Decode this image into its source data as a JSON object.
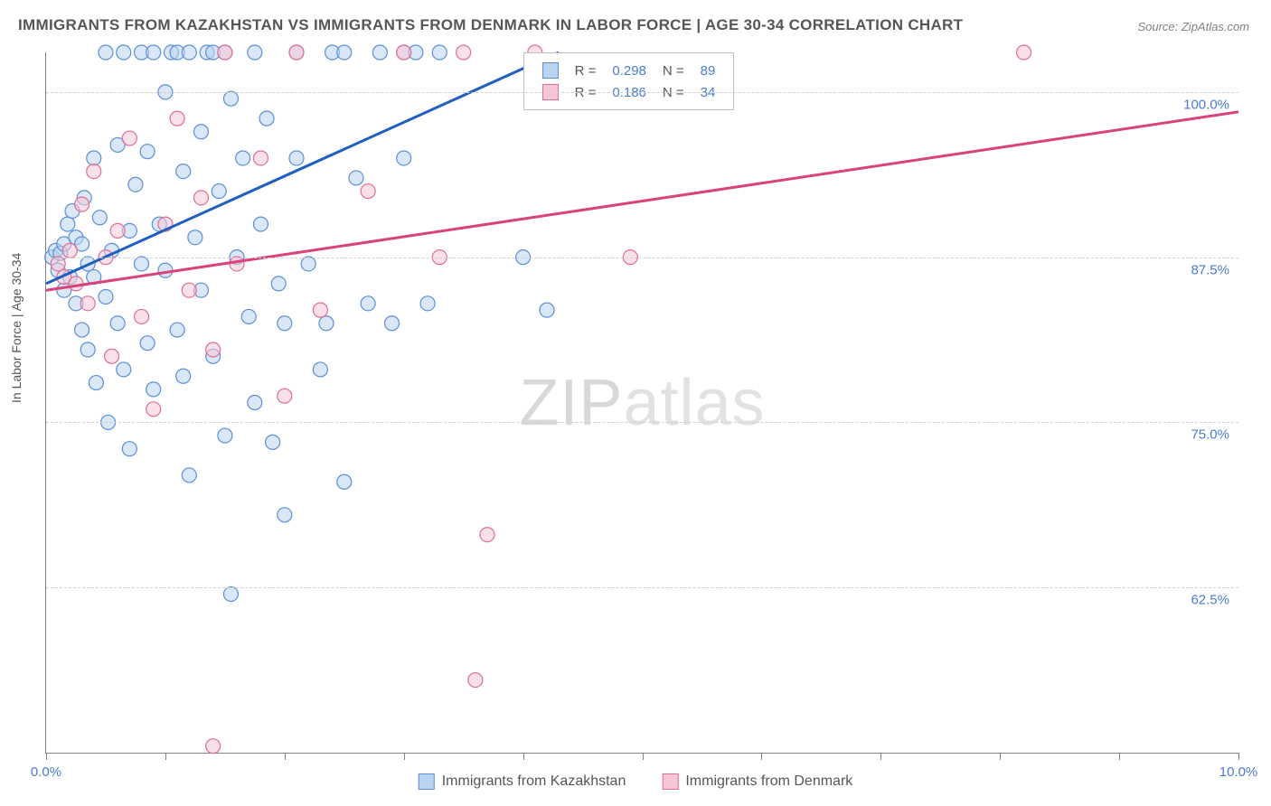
{
  "title": "IMMIGRANTS FROM KAZAKHSTAN VS IMMIGRANTS FROM DENMARK IN LABOR FORCE | AGE 30-34 CORRELATION CHART",
  "source": "Source: ZipAtlas.com",
  "y_axis_label": "In Labor Force | Age 30-34",
  "watermark_bold": "ZIP",
  "watermark_thin": "atlas",
  "chart": {
    "type": "scatter",
    "x_domain": [
      0,
      10
    ],
    "y_domain": [
      50,
      103
    ],
    "x_ticks": [
      0,
      1,
      2,
      3,
      4,
      5,
      6,
      7,
      8,
      9,
      10
    ],
    "x_tick_labels": {
      "0": "0.0%",
      "10": "10.0%"
    },
    "y_gridlines": [
      62.5,
      75.0,
      87.5,
      100.0
    ],
    "y_tick_labels": [
      "62.5%",
      "75.0%",
      "87.5%",
      "100.0%"
    ],
    "background_color": "#ffffff",
    "grid_color": "#d0d0d0",
    "axis_color": "#808080",
    "tick_label_color": "#4a7bd0",
    "marker_radius": 8,
    "marker_stroke_width": 1.2,
    "series": [
      {
        "name": "Immigrants from Kazakhstan",
        "fill": "#b9d3f0",
        "stroke": "#5b8fd6",
        "fill_opacity": 0.55,
        "regression": {
          "x1": 0,
          "y1": 85.5,
          "x2": 4.3,
          "y2": 103,
          "color": "#1f5fbf",
          "width": 3
        },
        "r": "0.298",
        "n": "89",
        "points": [
          [
            0.05,
            87.5
          ],
          [
            0.08,
            88.0
          ],
          [
            0.1,
            86.5
          ],
          [
            0.12,
            87.8
          ],
          [
            0.15,
            88.5
          ],
          [
            0.15,
            85.0
          ],
          [
            0.18,
            90.0
          ],
          [
            0.2,
            86.0
          ],
          [
            0.22,
            91.0
          ],
          [
            0.25,
            84.0
          ],
          [
            0.25,
            89.0
          ],
          [
            0.3,
            88.5
          ],
          [
            0.3,
            82.0
          ],
          [
            0.32,
            92.0
          ],
          [
            0.35,
            87.0
          ],
          [
            0.35,
            80.5
          ],
          [
            0.4,
            95.0
          ],
          [
            0.4,
            86.0
          ],
          [
            0.42,
            78.0
          ],
          [
            0.45,
            90.5
          ],
          [
            0.5,
            103.0
          ],
          [
            0.5,
            84.5
          ],
          [
            0.52,
            75.0
          ],
          [
            0.55,
            88.0
          ],
          [
            0.6,
            96.0
          ],
          [
            0.6,
            82.5
          ],
          [
            0.65,
            103.0
          ],
          [
            0.65,
            79.0
          ],
          [
            0.7,
            89.5
          ],
          [
            0.7,
            73.0
          ],
          [
            0.75,
            93.0
          ],
          [
            0.8,
            87.0
          ],
          [
            0.8,
            103.0
          ],
          [
            0.85,
            81.0
          ],
          [
            0.85,
            95.5
          ],
          [
            0.9,
            77.5
          ],
          [
            0.9,
            103.0
          ],
          [
            0.95,
            90.0
          ],
          [
            1.0,
            86.5
          ],
          [
            1.0,
            100.0
          ],
          [
            1.05,
            103.0
          ],
          [
            1.1,
            103.0
          ],
          [
            1.1,
            82.0
          ],
          [
            1.15,
            78.5
          ],
          [
            1.15,
            94.0
          ],
          [
            1.2,
            103.0
          ],
          [
            1.2,
            71.0
          ],
          [
            1.25,
            89.0
          ],
          [
            1.3,
            97.0
          ],
          [
            1.3,
            85.0
          ],
          [
            1.35,
            103.0
          ],
          [
            1.4,
            80.0
          ],
          [
            1.4,
            103.0
          ],
          [
            1.45,
            92.5
          ],
          [
            1.5,
            103.0
          ],
          [
            1.5,
            74.0
          ],
          [
            1.55,
            99.5
          ],
          [
            1.55,
            62.0
          ],
          [
            1.6,
            87.5
          ],
          [
            1.65,
            95.0
          ],
          [
            1.7,
            83.0
          ],
          [
            1.75,
            103.0
          ],
          [
            1.75,
            76.5
          ],
          [
            1.8,
            90.0
          ],
          [
            1.85,
            98.0
          ],
          [
            1.9,
            73.5
          ],
          [
            1.95,
            85.5
          ],
          [
            2.0,
            82.5
          ],
          [
            2.0,
            68.0
          ],
          [
            2.1,
            103.0
          ],
          [
            2.1,
            95.0
          ],
          [
            2.2,
            87.0
          ],
          [
            2.3,
            79.0
          ],
          [
            2.35,
            82.5
          ],
          [
            2.4,
            103.0
          ],
          [
            2.5,
            103.0
          ],
          [
            2.5,
            70.5
          ],
          [
            2.6,
            93.5
          ],
          [
            2.7,
            84.0
          ],
          [
            2.8,
            103.0
          ],
          [
            2.9,
            82.5
          ],
          [
            3.0,
            103.0
          ],
          [
            3.0,
            95.0
          ],
          [
            3.1,
            103.0
          ],
          [
            3.2,
            84.0
          ],
          [
            3.3,
            103.0
          ],
          [
            4.0,
            87.5
          ],
          [
            4.1,
            100.5
          ],
          [
            4.2,
            83.5
          ]
        ]
      },
      {
        "name": "Immigrants from Denmark",
        "fill": "#f5c6d6",
        "stroke": "#e06d94",
        "fill_opacity": 0.55,
        "regression": {
          "x1": 0,
          "y1": 85.0,
          "x2": 10,
          "y2": 98.5,
          "color": "#d9427a",
          "width": 3
        },
        "r": "0.186",
        "n": "34",
        "points": [
          [
            0.1,
            87.0
          ],
          [
            0.15,
            86.0
          ],
          [
            0.2,
            88.0
          ],
          [
            0.25,
            85.5
          ],
          [
            0.3,
            91.5
          ],
          [
            0.35,
            84.0
          ],
          [
            0.4,
            94.0
          ],
          [
            0.5,
            87.5
          ],
          [
            0.55,
            80.0
          ],
          [
            0.6,
            89.5
          ],
          [
            0.7,
            96.5
          ],
          [
            0.8,
            83.0
          ],
          [
            0.9,
            76.0
          ],
          [
            1.0,
            90.0
          ],
          [
            1.1,
            98.0
          ],
          [
            1.2,
            85.0
          ],
          [
            1.3,
            92.0
          ],
          [
            1.4,
            80.5
          ],
          [
            1.4,
            50.5
          ],
          [
            1.5,
            103.0
          ],
          [
            1.6,
            87.0
          ],
          [
            1.8,
            95.0
          ],
          [
            2.0,
            77.0
          ],
          [
            2.1,
            103.0
          ],
          [
            2.3,
            83.5
          ],
          [
            2.7,
            92.5
          ],
          [
            3.0,
            103.0
          ],
          [
            3.3,
            87.5
          ],
          [
            3.5,
            103.0
          ],
          [
            3.6,
            55.5
          ],
          [
            3.7,
            66.5
          ],
          [
            4.1,
            103.0
          ],
          [
            4.9,
            87.5
          ],
          [
            8.2,
            103.0
          ]
        ]
      }
    ]
  },
  "legend_box": {
    "r_label": "R =",
    "n_label": "N =",
    "value_color": "#4a7bd0"
  },
  "bottom_legend": {
    "items": [
      "Immigrants from Kazakhstan",
      "Immigrants from Denmark"
    ]
  }
}
